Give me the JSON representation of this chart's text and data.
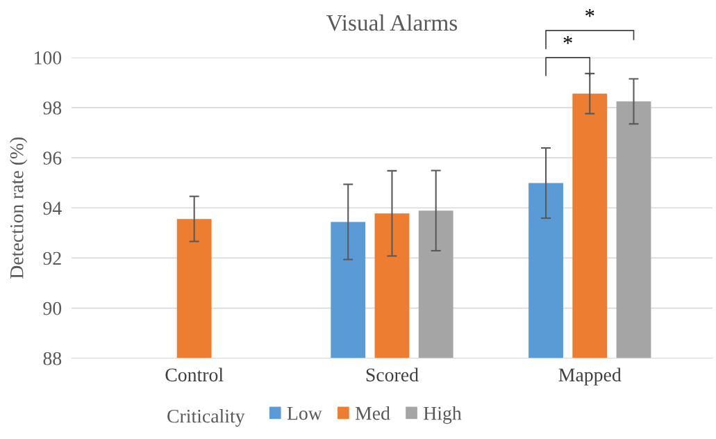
{
  "chart_data": {
    "type": "bar",
    "title": "Visual Alarms",
    "ylabel": "Detection rate (%)",
    "legend_title": "Criticality",
    "categories": [
      "Control",
      "Scored",
      "Mapped"
    ],
    "series": [
      {
        "name": "Low",
        "color": "#5b9bd5",
        "values": [
          null,
          93.44,
          94.99
        ],
        "errors": [
          null,
          1.5,
          1.4
        ]
      },
      {
        "name": "Med",
        "color": "#ed7d31",
        "values": [
          93.56,
          93.78,
          98.56
        ],
        "errors": [
          0.9,
          1.7,
          0.8
        ]
      },
      {
        "name": "High",
        "color": "#a5a5a5",
        "values": [
          null,
          93.89,
          98.25
        ],
        "errors": [
          null,
          1.6,
          0.9
        ]
      }
    ],
    "ylim": [
      88,
      100
    ],
    "yticks": [
      88,
      90,
      92,
      94,
      96,
      98,
      100
    ],
    "grid": "y",
    "legend": "bottom",
    "annotations": [
      "*",
      "*"
    ]
  }
}
